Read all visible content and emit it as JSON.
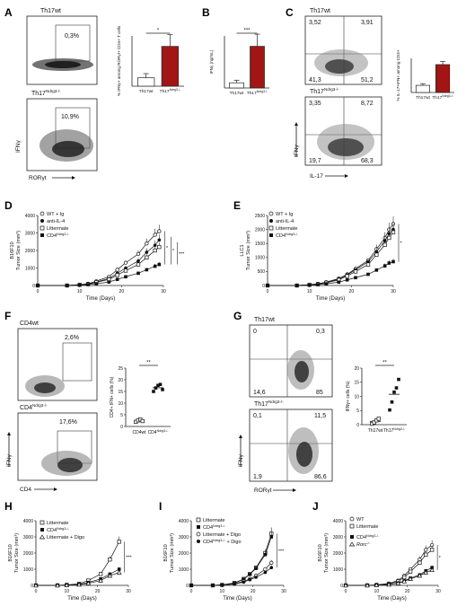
{
  "panels": {
    "A": {
      "letter": "A",
      "top_label": "Th17wt",
      "bottom_label": "Th17",
      "bottom_label_sup": "Ndrg3-/-",
      "top_pct": "0,3%",
      "bottom_pct": "10,9%",
      "y_axis": "IFNγ",
      "x_axis": "RORγt"
    },
    "B": {
      "letter": "B"
    },
    "C": {
      "letter": "C",
      "top_label": "Th17wt",
      "bottom_label": "Th17",
      "bottom_label_sup": "Ndrg3-/-",
      "top_quadrants": [
        "3,52",
        "3,91",
        "41,3",
        "51,2"
      ],
      "bottom_quadrants": [
        "3,35",
        "8,72",
        "19,7",
        "68,3"
      ],
      "y_axis": "IFNγ",
      "x_axis": "IL-17"
    },
    "D": {
      "letter": "D",
      "legend": [
        "WT + Ig",
        "anti-IL-4",
        "Littermate",
        "CD4"
      ],
      "legend_sup": "Ndrg3-/-"
    },
    "E": {
      "letter": "E",
      "legend": [
        "WT + Ig",
        "anti-IL-4",
        "Littermate",
        "CD4"
      ],
      "legend_sup": "Ndrg3-/-"
    },
    "F": {
      "letter": "F",
      "top_label": "CD4wt",
      "bottom_label": "CD4",
      "bottom_label_sup": "Ndrg3-/-",
      "top_pct": "2,6%",
      "bottom_pct": "17,6%",
      "y_axis": "IFNγ",
      "x_axis": "CD4"
    },
    "G": {
      "letter": "G",
      "top_label": "Th17wt",
      "bottom_label": "Th17",
      "bottom_label_sup": "Ndrg3-/-",
      "top_quadrants": [
        "0",
        "0,3",
        "14,6",
        "85"
      ],
      "bottom_quadrants": [
        "0,1",
        "11,5",
        "1,9",
        "86,6"
      ],
      "y_axis": "IFNγ",
      "x_axis": "RORγt"
    },
    "H": {
      "letter": "H",
      "legend": [
        "Littermate",
        "CD4",
        "Littermate + Digo"
      ],
      "legend_sup": "Ndrg3-/-"
    },
    "I": {
      "letter": "I",
      "legend": [
        "Littermate",
        "CD4",
        "Littermate + Digo",
        "CD4"
      ],
      "legend_sup": "Ndrg3-/-",
      "legend_extra": " + Digo"
    },
    "J": {
      "letter": "J",
      "legend": [
        "WT",
        "Littermate",
        "CD4",
        "Rorc"
      ],
      "legend_sup": "Ndrg3-/-",
      "rorc_sup": "-/-"
    }
  },
  "chart_data": [
    {
      "id": "A-bar",
      "type": "bar",
      "categories": [
        "Th17wt",
        "Th17"
      ],
      "category_sups": [
        "",
        "Ndrg3-/-"
      ],
      "values": [
        2.0,
        9.5
      ],
      "errors": [
        1.0,
        2.8
      ],
      "ylabel": "% IFNγ+ among RORγt+ CD4+ T cells",
      "significance": "*",
      "fills": [
        "#ffffff",
        "#a31515"
      ]
    },
    {
      "id": "B-bar",
      "type": "bar",
      "categories": [
        "Th17wt",
        "Th17"
      ],
      "category_sups": [
        "",
        "Ndrg3-/-"
      ],
      "values": [
        0.3,
        2.4
      ],
      "errors": [
        0.15,
        0.7
      ],
      "ylabel": "IFNγ (ng/mL)",
      "significance": "***",
      "fills": [
        "#ffffff",
        "#a31515"
      ]
    },
    {
      "id": "C-bar",
      "type": "bar",
      "categories": [
        "Th17wt",
        "Th17"
      ],
      "category_sups": [
        "",
        "Ndrg3-/-"
      ],
      "values": [
        2.5,
        9.8
      ],
      "errors": [
        0.6,
        1.1
      ],
      "ylabel": "% IL-17+IFN+ among CD4+",
      "significance": "",
      "fills": [
        "#ffffff",
        "#a31515"
      ]
    },
    {
      "id": "D-line",
      "type": "line",
      "title": "",
      "xlabel": "Time (Days)",
      "ylabel": "B16F10",
      "ylabel2": "Tumor Size (mm³)",
      "xlim": [
        0,
        30
      ],
      "ylim": [
        0,
        4000
      ],
      "xticks": [
        0,
        10,
        20,
        30
      ],
      "yticks": [
        0,
        1000,
        2000,
        3000,
        4000
      ],
      "x": [
        0,
        7,
        10,
        12,
        14,
        17,
        19,
        21,
        24,
        26,
        28,
        29
      ],
      "series": [
        {
          "name": "WT + Ig",
          "marker": "open-circle",
          "values": [
            0,
            0,
            50,
            100,
            250,
            500,
            900,
            1300,
            1800,
            2400,
            2900,
            3100
          ]
        },
        {
          "name": "anti-IL-4",
          "marker": "filled-circle",
          "values": [
            0,
            0,
            40,
            80,
            200,
            400,
            700,
            1000,
            1400,
            1900,
            2300,
            2600
          ]
        },
        {
          "name": "Littermate",
          "marker": "open-square",
          "values": [
            0,
            0,
            40,
            80,
            180,
            350,
            600,
            850,
            1200,
            1600,
            2000,
            2200
          ]
        },
        {
          "name": "CD4",
          "name_sup": "Ndrg3-/-",
          "marker": "filled-square",
          "values": [
            0,
            0,
            20,
            50,
            100,
            200,
            350,
            500,
            700,
            900,
            1100,
            1200
          ]
        }
      ],
      "significance": [
        "*",
        "*",
        "***"
      ]
    },
    {
      "id": "E-line",
      "type": "line",
      "title": "",
      "xlabel": "Time (Days)",
      "ylabel": "LLC1",
      "ylabel2": "Tumor Size (mm³)",
      "xlim": [
        0,
        30
      ],
      "ylim": [
        0,
        2500
      ],
      "xticks": [
        0,
        10,
        20,
        30
      ],
      "yticks": [
        0,
        500,
        1000,
        1500,
        2000,
        2500
      ],
      "x": [
        0,
        7,
        10,
        12,
        14,
        17,
        19,
        21,
        24,
        26,
        28,
        29,
        30
      ],
      "series": [
        {
          "name": "WT + Ig",
          "marker": "open-circle",
          "values": [
            0,
            0,
            30,
            60,
            120,
            250,
            400,
            600,
            900,
            1300,
            1700,
            2000,
            2200
          ]
        },
        {
          "name": "anti-IL-4",
          "marker": "filled-circle",
          "values": [
            0,
            0,
            30,
            60,
            110,
            230,
            380,
            560,
            850,
            1200,
            1600,
            1850,
            2000
          ]
        },
        {
          "name": "Littermate",
          "marker": "open-square",
          "values": [
            0,
            0,
            25,
            50,
            100,
            200,
            340,
            500,
            750,
            1100,
            1450,
            1700,
            1900
          ]
        },
        {
          "name": "CD4",
          "name_sup": "Ndrg3-/-",
          "marker": "filled-square",
          "values": [
            0,
            0,
            10,
            30,
            60,
            120,
            200,
            280,
            400,
            550,
            700,
            800,
            850
          ]
        }
      ],
      "significance": [
        "*"
      ]
    },
    {
      "id": "F-dot",
      "type": "scatter",
      "categories": [
        "CD4wt",
        "CD4"
      ],
      "category_sups": [
        "",
        "Ndrg3-/-"
      ],
      "ylabel": "CD4+ IFN+ cells (%)",
      "ylim": [
        0,
        25
      ],
      "yticks": [
        0,
        5,
        10,
        15,
        20,
        25
      ],
      "groups": [
        {
          "name": "CD4wt",
          "marker": "open-square",
          "values": [
            2.0,
            2.6,
            3.0,
            2.3
          ]
        },
        {
          "name": "CD4",
          "name_sup": "Ndrg3-/-",
          "marker": "filled-square",
          "values": [
            15.0,
            16.5,
            17.6,
            18.0,
            15.8
          ]
        }
      ],
      "significance": "**"
    },
    {
      "id": "G-dot",
      "type": "scatter",
      "categories": [
        "Th17wt",
        "Th17"
      ],
      "category_sups": [
        "",
        "Ndrg3-/-"
      ],
      "ylabel": "IFNγ+ cells (%)",
      "ylim": [
        0,
        20
      ],
      "yticks": [
        0,
        5,
        10,
        15,
        20
      ],
      "groups": [
        {
          "name": "Th17wt",
          "marker": "open-square",
          "values": [
            0.3,
            0.8,
            1.5,
            2.1
          ]
        },
        {
          "name": "Th17",
          "name_sup": "Ndrg3-/-",
          "marker": "filled-square",
          "values": [
            5.2,
            8.0,
            11.5,
            13.0,
            16.0
          ]
        }
      ],
      "significance": "**"
    },
    {
      "id": "H-line",
      "type": "line",
      "xlabel": "Time (Days)",
      "ylabel": "B16F10",
      "ylabel2": "Tumor Size (mm³)",
      "xlim": [
        0,
        30
      ],
      "ylim": [
        0,
        4000
      ],
      "xticks": [
        0,
        10,
        20,
        30
      ],
      "yticks": [
        0,
        1000,
        2000,
        3000,
        4000
      ],
      "x": [
        0,
        7,
        10,
        14,
        17,
        21,
        24,
        27
      ],
      "series": [
        {
          "name": "Littermate",
          "marker": "open-square",
          "values": [
            0,
            0,
            30,
            100,
            300,
            700,
            1600,
            2700
          ]
        },
        {
          "name": "CD4",
          "name_sup": "Ndrg3-/-",
          "marker": "filled-square",
          "values": [
            0,
            0,
            20,
            60,
            180,
            400,
            700,
            1000
          ]
        },
        {
          "name": "Littermate + Digo",
          "marker": "open-triangle",
          "values": [
            0,
            0,
            15,
            50,
            120,
            300,
            600,
            800
          ]
        }
      ],
      "significance": [
        "***"
      ]
    },
    {
      "id": "I-line",
      "type": "line",
      "xlabel": "Time (Days)",
      "ylabel": "B16F10",
      "ylabel2": "Tumor Size (mm³)",
      "xlim": [
        0,
        30
      ],
      "ylim": [
        0,
        4000
      ],
      "xticks": [
        0,
        10,
        20,
        30
      ],
      "yticks": [
        0,
        1000,
        2000,
        3000,
        4000
      ],
      "x": [
        0,
        7,
        10,
        14,
        17,
        19,
        21,
        24,
        26
      ],
      "series": [
        {
          "name": "Littermate",
          "marker": "open-square",
          "values": [
            0,
            0,
            30,
            150,
            400,
            700,
            1100,
            2000,
            3200
          ]
        },
        {
          "name": "CD4",
          "name_sup": "Ndrg3-/-",
          "marker": "filled-square",
          "values": [
            0,
            0,
            30,
            140,
            380,
            680,
            1050,
            1900,
            3000
          ]
        },
        {
          "name": "Littermate + Digo",
          "marker": "open-circle",
          "values": [
            0,
            0,
            20,
            100,
            250,
            400,
            600,
            1000,
            1400
          ]
        },
        {
          "name": "CD4 + Digo",
          "name_sup": "Ndrg3-/-",
          "marker": "filled-circle",
          "values": [
            0,
            0,
            20,
            80,
            200,
            350,
            500,
            800,
            1100
          ]
        }
      ],
      "significance": [
        "***"
      ]
    },
    {
      "id": "J-line",
      "type": "line",
      "xlabel": "Time (Days)",
      "ylabel": "B16F10",
      "ylabel2": "Tumor Size (mm³)",
      "xlim": [
        0,
        30
      ],
      "ylim": [
        0,
        4000
      ],
      "xticks": [
        0,
        10,
        20,
        30
      ],
      "yticks": [
        0,
        1000,
        2000,
        3000,
        4000
      ],
      "x": [
        0,
        7,
        10,
        14,
        17,
        19,
        21,
        24,
        26,
        28
      ],
      "series": [
        {
          "name": "WT",
          "marker": "open-circle",
          "values": [
            0,
            0,
            30,
            120,
            300,
            600,
            1000,
            1600,
            2200,
            2500
          ]
        },
        {
          "name": "Littermate",
          "marker": "open-square",
          "values": [
            0,
            0,
            25,
            100,
            250,
            500,
            850,
            1400,
            1900,
            2200
          ]
        },
        {
          "name": "CD4",
          "name_sup": "Ndrg3-/-",
          "marker": "filled-square",
          "values": [
            0,
            0,
            15,
            60,
            150,
            280,
            450,
            650,
            900,
            1100
          ]
        },
        {
          "name": "Rorc",
          "name_sup": "-/-",
          "marker": "open-triangle",
          "values": [
            0,
            0,
            15,
            50,
            130,
            250,
            400,
            600,
            800,
            950
          ]
        }
      ],
      "significance": [
        "*"
      ]
    }
  ]
}
